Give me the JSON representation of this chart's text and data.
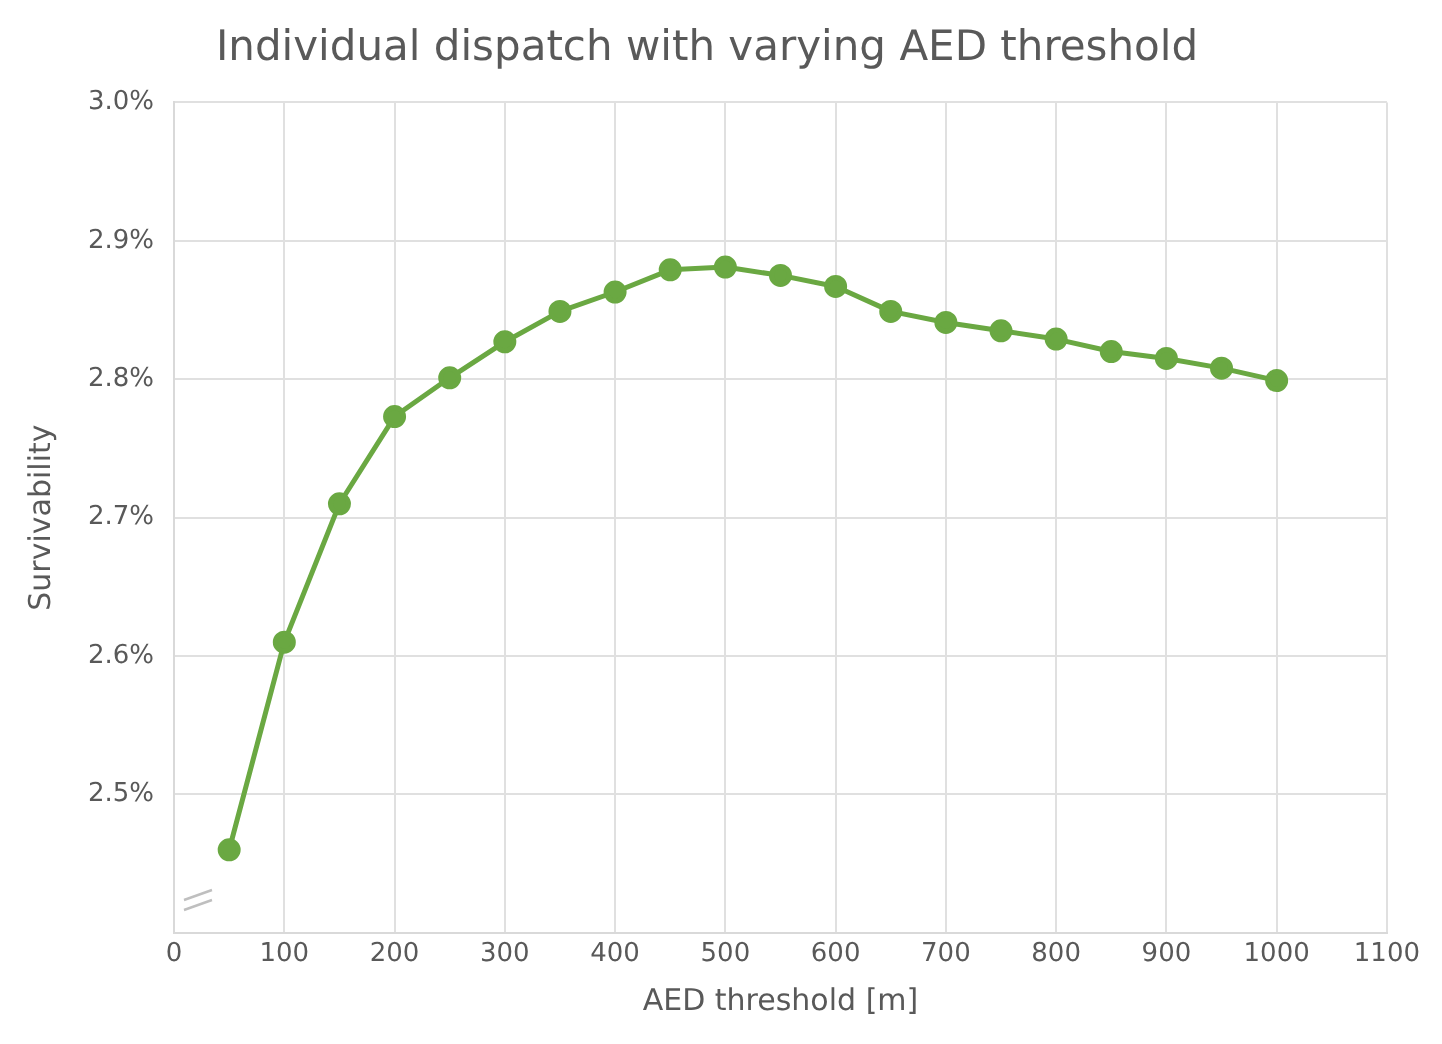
{
  "chart_data": {
    "type": "line",
    "title": "Individual dispatch with varying AED threshold",
    "xlabel": "AED threshold [m]",
    "ylabel": "Survivability",
    "x": [
      50,
      100,
      150,
      200,
      250,
      300,
      350,
      400,
      450,
      500,
      550,
      600,
      650,
      700,
      750,
      800,
      850,
      900,
      950,
      1000
    ],
    "series": [
      {
        "color": "#6aa842",
        "values": [
          2.46,
          2.61,
          2.71,
          2.773,
          2.801,
          2.827,
          2.849,
          2.863,
          2.879,
          2.881,
          2.875,
          2.867,
          2.849,
          2.841,
          2.835,
          2.829,
          2.82,
          2.815,
          2.808,
          2.799
        ]
      }
    ],
    "xlim": [
      0,
      1100
    ],
    "xticks": [
      0,
      100,
      200,
      300,
      400,
      500,
      600,
      700,
      800,
      900,
      1000,
      1100
    ],
    "ylim": [
      2.4,
      3.0
    ],
    "yticks": [
      {
        "value": 2.4,
        "label": null
      },
      {
        "value": 2.5,
        "label": "2.5%"
      },
      {
        "value": 2.6,
        "label": "2.6%"
      },
      {
        "value": 2.7,
        "label": "2.7%"
      },
      {
        "value": 2.8,
        "label": "2.8%"
      },
      {
        "value": 2.9,
        "label": "2.9%"
      },
      {
        "value": 3.0,
        "label": "3.0%"
      }
    ],
    "grid": true,
    "legend": false,
    "marker": "circle",
    "line_style": "solid"
  }
}
